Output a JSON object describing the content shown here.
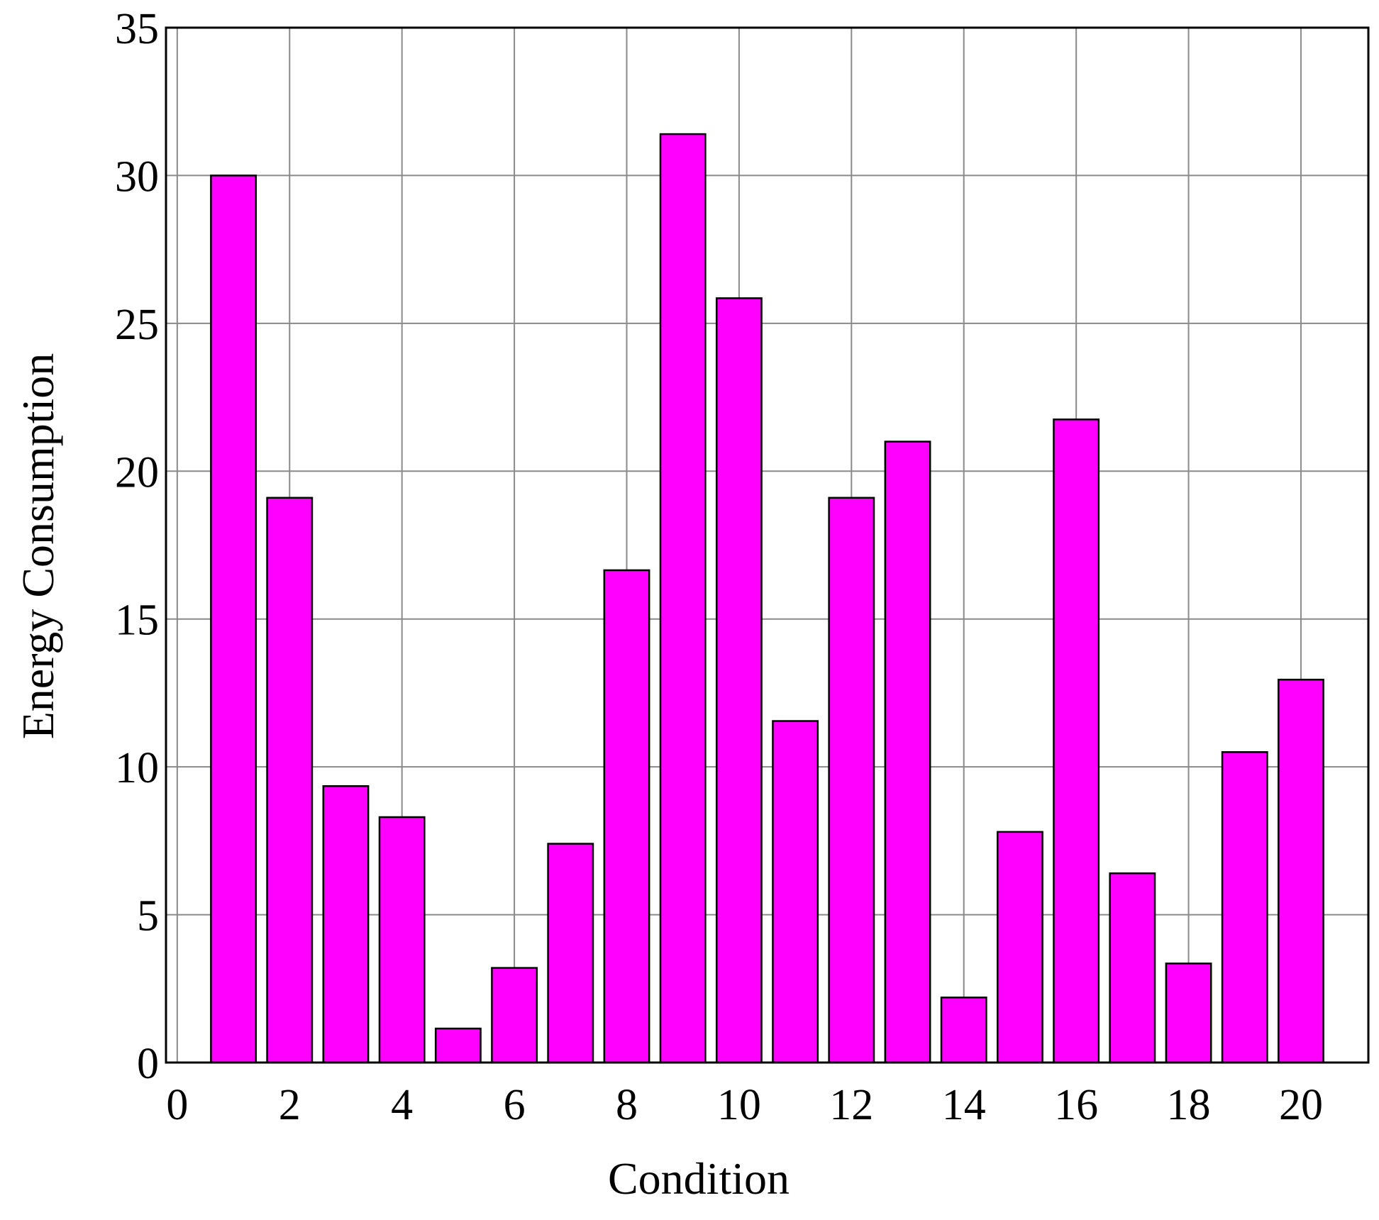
{
  "chart_data": {
    "type": "bar",
    "x_label": "Condition",
    "y_label": "Energy Consumption",
    "x": [
      1,
      2,
      3,
      4,
      5,
      6,
      7,
      8,
      9,
      10,
      11,
      12,
      13,
      14,
      15,
      16,
      17,
      18,
      19,
      20
    ],
    "values": [
      30,
      19.1,
      9.35,
      8.3,
      1.15,
      3.2,
      7.4,
      16.65,
      31.4,
      25.85,
      11.55,
      19.1,
      21,
      2.2,
      7.8,
      21.75,
      6.4,
      3.35,
      10.5,
      12.95
    ],
    "color": "#ff00ff",
    "xlim": [
      -0.2,
      21.2
    ],
    "ylim": [
      0,
      35
    ],
    "xticks": [
      0,
      2,
      4,
      6,
      8,
      10,
      12,
      14,
      16,
      18,
      20
    ],
    "yticks": [
      0,
      5,
      10,
      15,
      20,
      25,
      30,
      35
    ],
    "grid": true
  }
}
